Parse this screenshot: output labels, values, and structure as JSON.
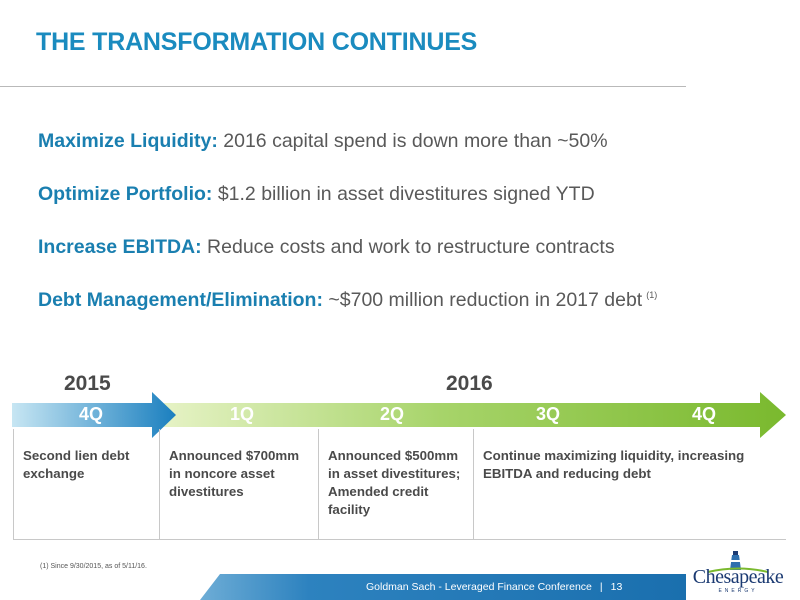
{
  "title": "THE TRANSFORMATION CONTINUES",
  "bullets": [
    {
      "lead": "Maximize Liquidity:",
      "text": " 2016 capital spend is down more than ~50%",
      "note": ""
    },
    {
      "lead": "Optimize Portfolio:",
      "text": " $1.2 billion in asset divestitures signed YTD",
      "note": ""
    },
    {
      "lead": "Increase EBITDA:",
      "text": " Reduce costs and work to restructure contracts",
      "note": ""
    },
    {
      "lead": "Debt Management/Elimination:",
      "text": " ~$700 million reduction in 2017 debt",
      "note": "(1)"
    }
  ],
  "timeline": {
    "years": [
      "2015",
      "2016"
    ],
    "quarters": [
      "4Q",
      "1Q",
      "2Q",
      "3Q",
      "4Q"
    ],
    "boxes": [
      "Second lien debt exchange",
      "Announced $700mm in noncore asset divestitures",
      "Announced $500mm in asset divestitures; Amended credit facility",
      "Continue maximizing liquidity, increasing EBITDA and reducing debt"
    ],
    "colors": {
      "blue_start": "#c7e6f3",
      "blue_end": "#1a7fbf",
      "green_start": "#e7f3c7",
      "green_end": "#7ab92e"
    }
  },
  "footnote": "(1)  Since 9/30/2015, as of 5/11/16.",
  "footer": {
    "text": "Goldman Sach - Leveraged Finance Conference",
    "separator": "|",
    "page": "13",
    "color_dark": "#1a6fae"
  },
  "logo": {
    "name": "Chesapeake",
    "sub": "ENERGY",
    "icon": "lighthouse-icon"
  }
}
